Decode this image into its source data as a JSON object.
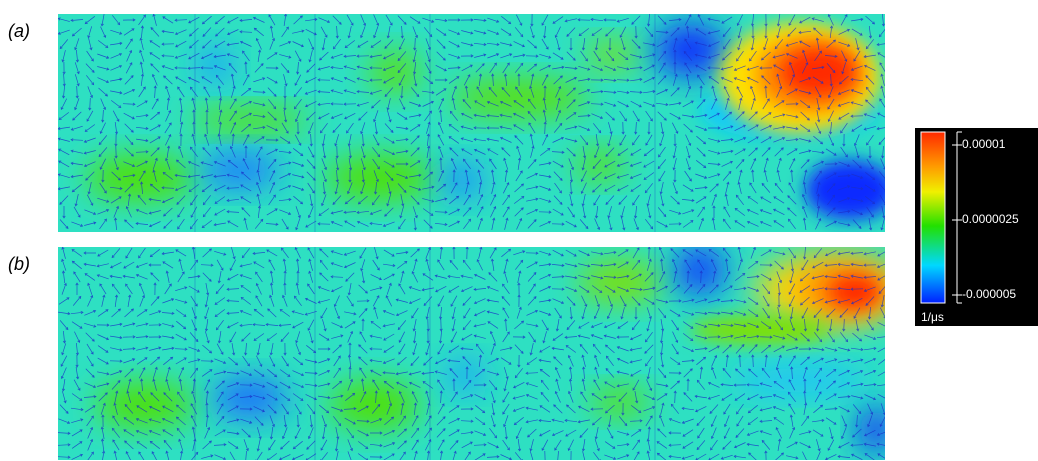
{
  "panels": [
    {
      "label": "(a)"
    },
    {
      "label": "(b)"
    }
  ],
  "colorbar": {
    "range": [
      -5.8e-06,
      1.13e-05
    ],
    "ticks": [
      1e-05,
      2.5e-06,
      -5e-06
    ],
    "unit": "1/μs"
  }
}
